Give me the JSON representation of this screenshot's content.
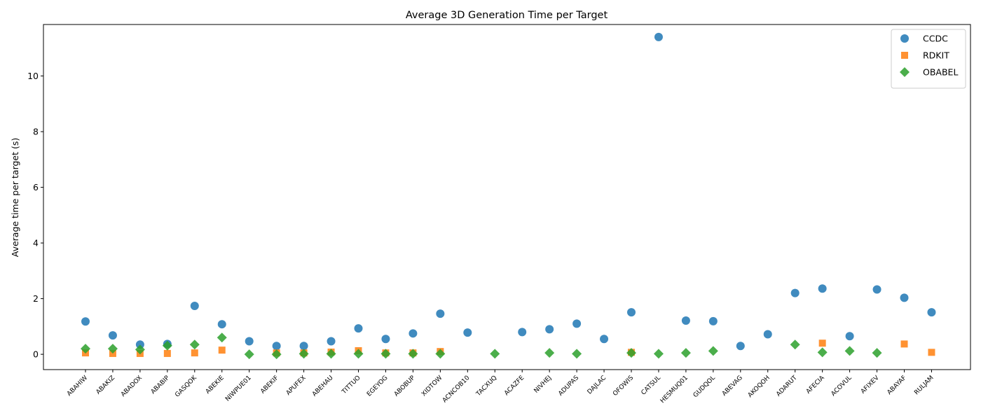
{
  "chart_data": {
    "type": "scatter",
    "title": "Average 3D Generation Time per Target",
    "xlabel": "",
    "ylabel": "Average time per target (s)",
    "ylim": [
      -0.55,
      11.85
    ],
    "yticks": [
      0,
      2,
      4,
      6,
      8,
      10
    ],
    "grid": false,
    "legend_position": "top-right",
    "categories": [
      "ABAHIW",
      "ABAKIZ",
      "ABADOX",
      "ABABIP",
      "GASQOK",
      "ABEKIE",
      "NIWPUE01",
      "ABEKIF",
      "APUFEX",
      "ABEHAU",
      "TITTUO",
      "EGEYOG",
      "ABOBUP",
      "XIDTOW",
      "ACNCOB10",
      "TACXUQ",
      "ACAZFE",
      "NIVHEJ",
      "ADUPAS",
      "DAJLAC",
      "OFOWIS",
      "CATSUL",
      "HESMUQ01",
      "GUDQOL",
      "ABEVAG",
      "AKOQOH",
      "ADARUT",
      "AFECIA",
      "ACOVUL",
      "AFIXEV",
      "ABAYAF",
      "RULJAM"
    ],
    "series": [
      {
        "name": "CCDC",
        "marker": "circle",
        "color": "#1f77b4",
        "values": [
          1.18,
          0.68,
          0.35,
          0.37,
          1.74,
          1.08,
          0.47,
          0.3,
          0.3,
          0.47,
          0.93,
          0.55,
          0.75,
          1.46,
          0.78,
          null,
          0.8,
          0.9,
          1.1,
          0.55,
          1.51,
          11.4,
          1.21,
          1.19,
          0.3,
          0.72,
          2.2,
          2.36,
          0.65,
          2.33,
          2.03,
          1.51
        ]
      },
      {
        "name": "RDKIT",
        "marker": "square",
        "color": "#ff7f0e",
        "values": [
          0.05,
          0.03,
          0.03,
          0.03,
          0.05,
          0.15,
          null,
          0.05,
          0.05,
          0.08,
          0.13,
          0.05,
          0.05,
          0.1,
          null,
          null,
          null,
          null,
          null,
          null,
          0.07,
          null,
          null,
          null,
          null,
          null,
          null,
          0.4,
          null,
          null,
          0.37,
          0.07
        ]
      },
      {
        "name": "OBABEL",
        "marker": "diamond",
        "color": "#2ca02c",
        "values": [
          0.2,
          0.2,
          0.17,
          0.31,
          0.35,
          0.6,
          0.0,
          0.0,
          0.02,
          0.02,
          0.02,
          0.02,
          0.02,
          0.02,
          null,
          0.02,
          null,
          0.05,
          0.02,
          null,
          0.05,
          0.02,
          0.05,
          0.12,
          null,
          null,
          0.35,
          0.07,
          0.12,
          0.05,
          null,
          null
        ]
      }
    ]
  }
}
